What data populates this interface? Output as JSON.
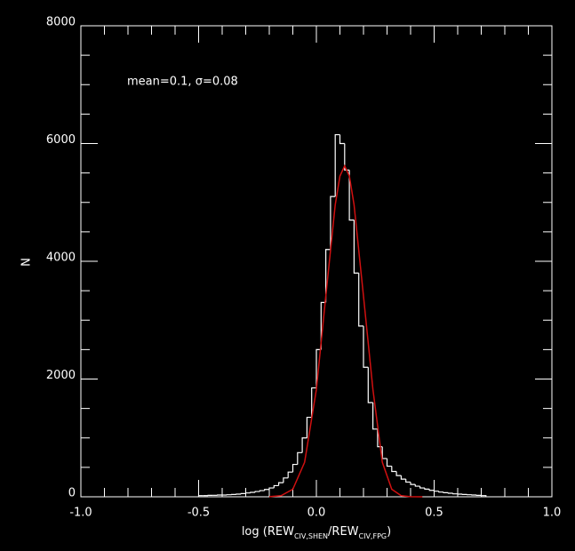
{
  "chart_data": {
    "type": "histogram",
    "annotation": "mean=0.1, σ=0.08",
    "ylabel": "N",
    "xlabel": {
      "prefix": "log (REW",
      "sub1": "CIV,SHEN",
      "mid": "/REW",
      "sub2": "CIV,FPG",
      "suffix": ")"
    },
    "xlim": [
      -1.0,
      1.0
    ],
    "ylim": [
      0,
      8000
    ],
    "xticks": [
      {
        "value": -1.0,
        "label": "-1.0"
      },
      {
        "value": -0.5,
        "label": "-0.5"
      },
      {
        "value": 0.0,
        "label": "0.0"
      },
      0.5,
      {
        "value": 1.0,
        "label": "1.0"
      }
    ],
    "yticks": [
      0,
      2000,
      4000,
      6000,
      8000
    ],
    "xminorticks": [
      -0.9,
      -0.8,
      -0.7,
      -0.6,
      -0.4,
      -0.3,
      -0.2,
      -0.1,
      0.1,
      0.2,
      0.3,
      0.4,
      0.6,
      0.7,
      0.8,
      0.9
    ],
    "yminorticks": [
      500,
      1000,
      1500,
      2500,
      3000,
      3500,
      4500,
      5000,
      5500,
      6500,
      7000,
      7500
    ],
    "color": "#ffffff",
    "bins": [
      -0.5,
      -0.48,
      -0.46,
      -0.44,
      -0.42,
      -0.4,
      -0.38,
      -0.36,
      -0.34,
      -0.32,
      -0.3,
      -0.28,
      -0.26,
      -0.24,
      -0.22,
      -0.2,
      -0.18,
      -0.16,
      -0.14,
      -0.12,
      -0.1,
      -0.08,
      -0.06,
      -0.04,
      -0.02,
      0.0,
      0.02,
      0.04,
      0.06,
      0.08,
      0.1,
      0.12,
      0.14,
      0.16,
      0.18,
      0.2,
      0.22,
      0.24,
      0.26,
      0.28,
      0.3,
      0.32,
      0.34,
      0.36,
      0.38,
      0.4,
      0.42,
      0.44,
      0.46,
      0.48,
      0.5,
      0.52,
      0.54,
      0.56,
      0.58,
      0.6,
      0.62,
      0.64,
      0.66,
      0.68,
      0.7,
      0.72
    ],
    "counts": [
      20,
      20,
      25,
      25,
      30,
      30,
      35,
      40,
      45,
      55,
      65,
      75,
      90,
      105,
      125,
      150,
      190,
      240,
      320,
      420,
      550,
      750,
      1000,
      1350,
      1850,
      2500,
      3300,
      4200,
      5100,
      6150,
      6000,
      5550,
      4700,
      3800,
      2900,
      2200,
      1600,
      1150,
      850,
      650,
      520,
      430,
      360,
      300,
      250,
      210,
      180,
      150,
      130,
      110,
      95,
      80,
      70,
      60,
      50,
      45,
      40,
      35,
      30,
      25,
      20
    ],
    "fit": {
      "color": "#d01010",
      "x": [
        -0.2,
        -0.15,
        -0.1,
        -0.05,
        0.0,
        0.04,
        0.08,
        0.1,
        0.12,
        0.14,
        0.16,
        0.2,
        0.24,
        0.28,
        0.32,
        0.36,
        0.4,
        0.45
      ],
      "values": [
        2,
        19,
        128,
        586,
        1825,
        3409,
        4958,
        5447,
        5620,
        5447,
        4958,
        3409,
        1825,
        586,
        128,
        19,
        2,
        0
      ]
    }
  }
}
